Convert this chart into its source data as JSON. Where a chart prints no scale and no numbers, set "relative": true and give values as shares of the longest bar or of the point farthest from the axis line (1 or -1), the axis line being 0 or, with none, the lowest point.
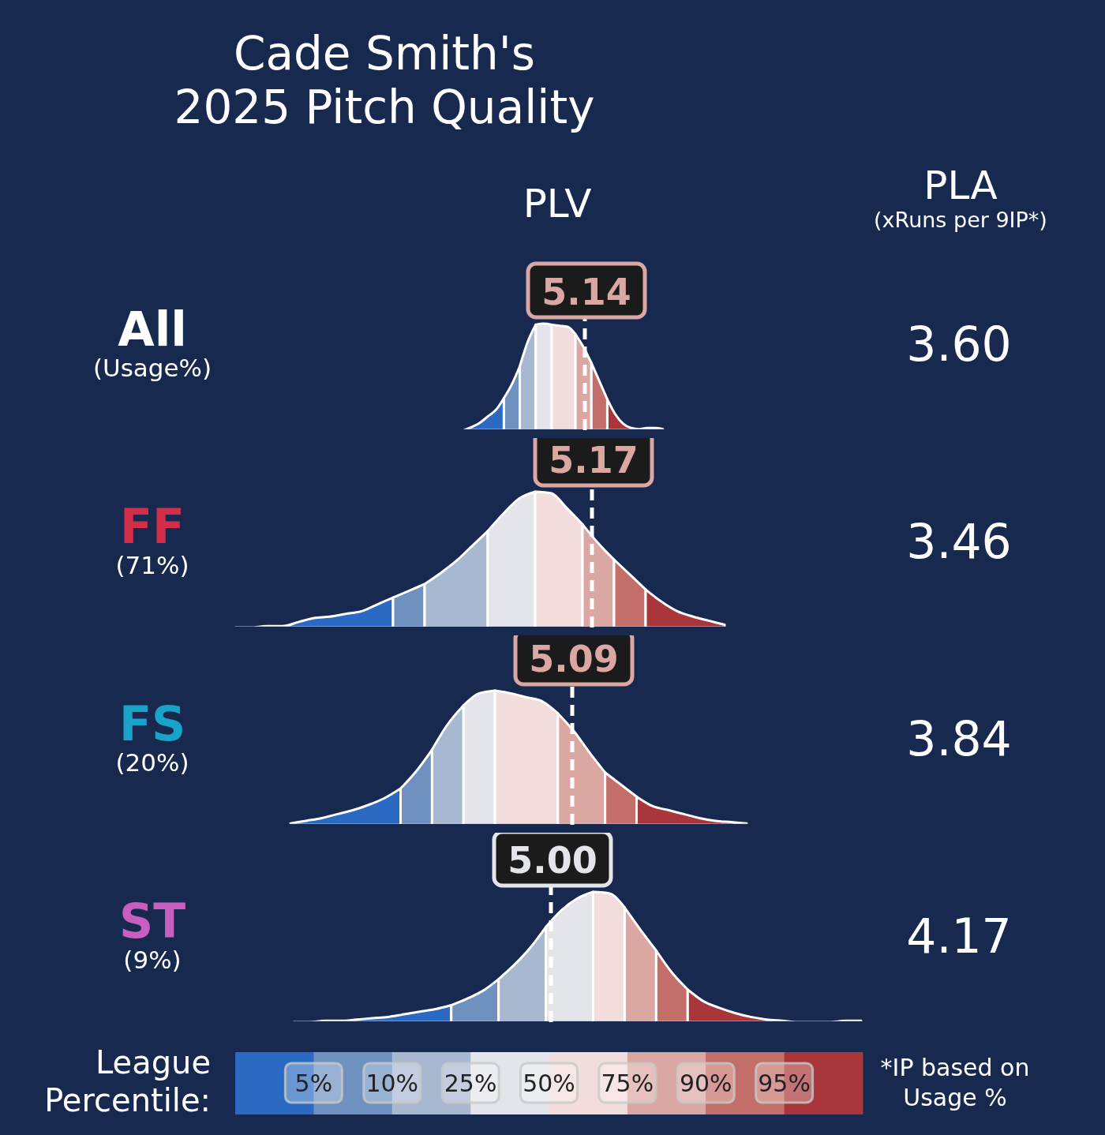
{
  "chart_data": [
    {
      "type": "other",
      "title": "Cade Smith's\n2025 Pitch Quality",
      "annotations": [
        "PLV",
        "PLA",
        "(xRuns per 9IP*)",
        "(Usage%)"
      ]
    },
    {
      "type": "area",
      "title": "All",
      "relative": true,
      "categories": [
        null,
        null,
        null,
        null,
        null,
        null,
        null,
        null,
        null,
        null,
        null,
        null,
        null,
        null,
        null,
        null,
        null,
        null,
        null,
        null,
        null,
        null,
        null,
        null,
        null,
        null
      ],
      "series": [
        {
          "color": "#2a6ac2",
          "values": [
            0,
            0.03,
            0.07,
            0.13,
            0.19,
            0.3,
            null,
            null,
            null,
            null,
            null,
            null,
            null,
            null,
            null,
            null,
            null,
            null,
            null,
            null,
            null,
            null,
            null,
            null,
            null,
            null
          ]
        },
        {
          "color": "#6e91c0",
          "values": [
            null,
            null,
            null,
            null,
            null,
            0.3,
            0.43,
            0.6,
            null,
            null,
            null,
            null,
            null,
            null,
            null,
            null,
            null,
            null,
            null,
            null,
            null,
            null,
            null,
            null,
            null,
            null
          ]
        },
        {
          "color": "#a9b8d1",
          "values": [
            null,
            null,
            null,
            null,
            null,
            null,
            null,
            0.6,
            0.83,
            0.99,
            null,
            null,
            null,
            null,
            null,
            null,
            null,
            null,
            null,
            null,
            null,
            null,
            null,
            null,
            null,
            null
          ]
        },
        {
          "color": "#e4e5ea",
          "values": [
            null,
            null,
            null,
            null,
            null,
            null,
            null,
            null,
            null,
            0.99,
            1,
            0.99,
            null,
            null,
            null,
            null,
            null,
            null,
            null,
            null,
            null,
            null,
            null,
            null,
            null,
            null
          ]
        },
        {
          "color": "#f2dddc",
          "values": [
            null,
            null,
            null,
            null,
            null,
            null,
            null,
            null,
            null,
            null,
            null,
            0.99,
            0.98,
            0.97,
            0.9,
            null,
            null,
            null,
            null,
            null,
            null,
            null,
            null,
            null,
            null,
            null
          ]
        },
        {
          "color": "#dba7a3",
          "values": [
            null,
            null,
            null,
            null,
            null,
            null,
            null,
            null,
            null,
            null,
            null,
            null,
            null,
            null,
            0.9,
            0.78,
            0.63,
            null,
            null,
            null,
            null,
            null,
            null,
            null,
            null,
            null
          ]
        },
        {
          "color": "#c46e69",
          "values": [
            null,
            null,
            null,
            null,
            null,
            null,
            null,
            null,
            null,
            null,
            null,
            null,
            null,
            null,
            null,
            null,
            0.63,
            0.46,
            0.29,
            null,
            null,
            null,
            null,
            null,
            null,
            null
          ]
        },
        {
          "color": "#a9363a",
          "values": [
            null,
            null,
            null,
            null,
            null,
            null,
            null,
            null,
            null,
            null,
            null,
            null,
            null,
            null,
            null,
            null,
            null,
            null,
            0.29,
            0.15,
            0.06,
            0.02,
            0.01,
            0.02,
            0.02,
            0.01
          ]
        }
      ],
      "annotations": [
        "5.14",
        "3.60"
      ]
    },
    {
      "type": "area",
      "title": "FF",
      "subtitle": "(71%)",
      "relative": true,
      "categories": [
        null,
        null,
        null,
        null,
        null,
        null,
        null,
        null,
        null,
        null,
        null,
        null,
        null,
        null,
        null,
        null,
        null,
        null,
        null,
        null,
        null,
        null,
        null,
        null,
        null,
        null,
        null,
        null,
        null,
        null,
        null,
        null
      ],
      "series": [
        {
          "color": "#2a6ac2",
          "values": [
            0,
            0,
            0.01,
            0.01,
            0.04,
            0.07,
            0.08,
            0.1,
            0.12,
            0.17,
            0.22,
            null,
            null,
            null,
            null,
            null,
            null,
            null,
            null,
            null,
            null,
            null,
            null,
            null,
            null,
            null,
            null,
            null,
            null,
            null,
            null,
            null
          ]
        },
        {
          "color": "#6e91c0",
          "values": [
            null,
            null,
            null,
            null,
            null,
            null,
            null,
            null,
            null,
            null,
            0.22,
            0.27,
            0.32,
            null,
            null,
            null,
            null,
            null,
            null,
            null,
            null,
            null,
            null,
            null,
            null,
            null,
            null,
            null,
            null,
            null,
            null,
            null
          ]
        },
        {
          "color": "#a9b8d1",
          "values": [
            null,
            null,
            null,
            null,
            null,
            null,
            null,
            null,
            null,
            null,
            null,
            null,
            0.32,
            0.4,
            0.49,
            0.6,
            0.71,
            null,
            null,
            null,
            null,
            null,
            null,
            null,
            null,
            null,
            null,
            null,
            null,
            null,
            null,
            null
          ]
        },
        {
          "color": "#e4e5ea",
          "values": [
            null,
            null,
            null,
            null,
            null,
            null,
            null,
            null,
            null,
            null,
            null,
            null,
            null,
            null,
            null,
            null,
            0.71,
            0.84,
            0.95,
            1,
            null,
            null,
            null,
            null,
            null,
            null,
            null,
            null,
            null,
            null,
            null,
            null
          ]
        },
        {
          "color": "#f2dddc",
          "values": [
            null,
            null,
            null,
            null,
            null,
            null,
            null,
            null,
            null,
            null,
            null,
            null,
            null,
            null,
            null,
            null,
            null,
            null,
            null,
            1,
            0.99,
            0.88,
            0.76,
            null,
            null,
            null,
            null,
            null,
            null,
            null,
            null,
            null
          ]
        },
        {
          "color": "#dba7a3",
          "values": [
            null,
            null,
            null,
            null,
            null,
            null,
            null,
            null,
            null,
            null,
            null,
            null,
            null,
            null,
            null,
            null,
            null,
            null,
            null,
            null,
            null,
            null,
            0.76,
            0.62,
            0.5,
            null,
            null,
            null,
            null,
            null,
            null,
            null
          ]
        },
        {
          "color": "#c46e69",
          "values": [
            null,
            null,
            null,
            null,
            null,
            null,
            null,
            null,
            null,
            null,
            null,
            null,
            null,
            null,
            null,
            null,
            null,
            null,
            null,
            null,
            null,
            null,
            null,
            null,
            0.5,
            0.39,
            0.28,
            null,
            null,
            null,
            null,
            null
          ]
        },
        {
          "color": "#a9363a",
          "values": [
            null,
            null,
            null,
            null,
            null,
            null,
            null,
            null,
            null,
            null,
            null,
            null,
            null,
            null,
            null,
            null,
            null,
            null,
            null,
            null,
            null,
            null,
            null,
            null,
            null,
            null,
            0.28,
            0.19,
            0.12,
            0.08,
            0.05,
            0.02
          ]
        }
      ],
      "annotations": [
        "5.17",
        "3.46"
      ]
    },
    {
      "type": "area",
      "title": "FS",
      "subtitle": "(20%)",
      "relative": true,
      "categories": [
        null,
        null,
        null,
        null,
        null,
        null,
        null,
        null,
        null,
        null,
        null,
        null,
        null,
        null,
        null,
        null,
        null,
        null,
        null,
        null,
        null,
        null,
        null,
        null,
        null,
        null,
        null,
        null,
        null,
        null
      ],
      "series": [
        {
          "color": "#2a6ac2",
          "values": [
            0.01,
            0.03,
            0.05,
            0.08,
            0.11,
            0.15,
            0.2,
            0.27,
            null,
            null,
            null,
            null,
            null,
            null,
            null,
            null,
            null,
            null,
            null,
            null,
            null,
            null,
            null,
            null,
            null,
            null,
            null,
            null,
            null,
            null
          ]
        },
        {
          "color": "#6e91c0",
          "values": [
            null,
            null,
            null,
            null,
            null,
            null,
            null,
            0.27,
            0.4,
            0.56,
            null,
            null,
            null,
            null,
            null,
            null,
            null,
            null,
            null,
            null,
            null,
            null,
            null,
            null,
            null,
            null,
            null,
            null,
            null,
            null
          ]
        },
        {
          "color": "#a9b8d1",
          "values": [
            null,
            null,
            null,
            null,
            null,
            null,
            null,
            null,
            null,
            0.56,
            0.75,
            0.89,
            null,
            null,
            null,
            null,
            null,
            null,
            null,
            null,
            null,
            null,
            null,
            null,
            null,
            null,
            null,
            null,
            null,
            null
          ]
        },
        {
          "color": "#e4e5ea",
          "values": [
            null,
            null,
            null,
            null,
            null,
            null,
            null,
            null,
            null,
            null,
            null,
            0.89,
            0.98,
            1,
            null,
            null,
            null,
            null,
            null,
            null,
            null,
            null,
            null,
            null,
            null,
            null,
            null,
            null,
            null,
            null
          ]
        },
        {
          "color": "#f2dddc",
          "values": [
            null,
            null,
            null,
            null,
            null,
            null,
            null,
            null,
            null,
            null,
            null,
            null,
            null,
            1,
            0.98,
            0.95,
            0.92,
            0.83,
            null,
            null,
            null,
            null,
            null,
            null,
            null,
            null,
            null,
            null,
            null,
            null
          ]
        },
        {
          "color": "#dba7a3",
          "values": [
            null,
            null,
            null,
            null,
            null,
            null,
            null,
            null,
            null,
            null,
            null,
            null,
            null,
            null,
            null,
            null,
            null,
            0.83,
            0.7,
            0.54,
            0.39,
            null,
            null,
            null,
            null,
            null,
            null,
            null,
            null,
            null
          ]
        },
        {
          "color": "#c46e69",
          "values": [
            null,
            null,
            null,
            null,
            null,
            null,
            null,
            null,
            null,
            null,
            null,
            null,
            null,
            null,
            null,
            null,
            null,
            null,
            null,
            null,
            0.39,
            0.3,
            0.21,
            null,
            null,
            null,
            null,
            null,
            null,
            null
          ]
        },
        {
          "color": "#a9363a",
          "values": [
            null,
            null,
            null,
            null,
            null,
            null,
            null,
            null,
            null,
            null,
            null,
            null,
            null,
            null,
            null,
            null,
            null,
            null,
            null,
            null,
            null,
            null,
            0.21,
            0.14,
            0.11,
            0.08,
            0.05,
            0.03,
            0.02,
            0.01
          ]
        }
      ],
      "annotations": [
        "5.09",
        "3.84"
      ]
    },
    {
      "type": "area",
      "title": "ST",
      "subtitle": "(9%)",
      "relative": true,
      "categories": [
        null,
        null,
        null,
        null,
        null,
        null,
        null,
        null,
        null,
        null,
        null,
        null,
        null,
        null,
        null,
        null,
        null,
        null,
        null,
        null,
        null,
        null,
        null,
        null,
        null,
        null,
        null,
        null,
        null,
        null,
        null,
        null,
        null,
        null,
        null,
        null,
        null
      ],
      "series": [
        {
          "color": "#2a6ac2",
          "values": [
            0,
            0,
            0.01,
            0.01,
            0.02,
            0.03,
            0.04,
            0.06,
            0.08,
            0.1,
            0.13,
            null,
            null,
            null,
            null,
            null,
            null,
            null,
            null,
            null,
            null,
            null,
            null,
            null,
            null,
            null,
            null,
            null,
            null,
            null,
            null,
            null,
            null,
            null,
            null,
            null,
            null
          ]
        },
        {
          "color": "#6e91c0",
          "values": [
            null,
            null,
            null,
            null,
            null,
            null,
            null,
            null,
            null,
            null,
            0.13,
            0.18,
            0.24,
            0.33,
            null,
            null,
            null,
            null,
            null,
            null,
            null,
            null,
            null,
            null,
            null,
            null,
            null,
            null,
            null,
            null,
            null,
            null,
            null,
            null,
            null,
            null,
            null
          ]
        },
        {
          "color": "#a9b8d1",
          "values": [
            null,
            null,
            null,
            null,
            null,
            null,
            null,
            null,
            null,
            null,
            null,
            null,
            null,
            0.33,
            0.44,
            0.57,
            0.73,
            null,
            null,
            null,
            null,
            null,
            null,
            null,
            null,
            null,
            null,
            null,
            null,
            null,
            null,
            null,
            null,
            null,
            null,
            null,
            null
          ]
        },
        {
          "color": "#e4e5ea",
          "values": [
            null,
            null,
            null,
            null,
            null,
            null,
            null,
            null,
            null,
            null,
            null,
            null,
            null,
            null,
            null,
            null,
            0.73,
            0.86,
            0.95,
            1,
            null,
            null,
            null,
            null,
            null,
            null,
            null,
            null,
            null,
            null,
            null,
            null,
            null,
            null,
            null,
            null,
            null
          ]
        },
        {
          "color": "#f2dddc",
          "values": [
            null,
            null,
            null,
            null,
            null,
            null,
            null,
            null,
            null,
            null,
            null,
            null,
            null,
            null,
            null,
            null,
            null,
            null,
            null,
            1,
            0.99,
            0.88,
            null,
            null,
            null,
            null,
            null,
            null,
            null,
            null,
            null,
            null,
            null,
            null,
            null,
            null,
            null
          ]
        },
        {
          "color": "#dba7a3",
          "values": [
            null,
            null,
            null,
            null,
            null,
            null,
            null,
            null,
            null,
            null,
            null,
            null,
            null,
            null,
            null,
            null,
            null,
            null,
            null,
            null,
            null,
            0.88,
            0.71,
            0.55,
            null,
            null,
            null,
            null,
            null,
            null,
            null,
            null,
            null,
            null,
            null,
            null,
            null
          ]
        },
        {
          "color": "#c46e69",
          "values": [
            null,
            null,
            null,
            null,
            null,
            null,
            null,
            null,
            null,
            null,
            null,
            null,
            null,
            null,
            null,
            null,
            null,
            null,
            null,
            null,
            null,
            null,
            null,
            0.55,
            0.38,
            0.25,
            null,
            null,
            null,
            null,
            null,
            null,
            null,
            null,
            null,
            null,
            null
          ]
        },
        {
          "color": "#a9363a",
          "values": [
            null,
            null,
            null,
            null,
            null,
            null,
            null,
            null,
            null,
            null,
            null,
            null,
            null,
            null,
            null,
            null,
            null,
            null,
            null,
            null,
            null,
            null,
            null,
            null,
            null,
            0.25,
            0.16,
            0.11,
            0.07,
            0.04,
            0.02,
            0.01,
            0,
            0,
            0,
            0.01,
            0.01
          ]
        }
      ],
      "annotations": [
        "5.00",
        "4.17"
      ]
    },
    {
      "type": "other",
      "colors": [
        "#2a6ac2",
        "#6e91c0",
        "#a9b8d1",
        "#e4e5ea",
        "#f2dddc",
        "#dba7a3",
        "#c46e69",
        "#a9363a"
      ],
      "annotations": [
        "League\nPercentile:",
        "5%",
        "10%",
        "25%",
        "50%",
        "75%",
        "90%",
        "95%",
        "*IP based on\nUsage %"
      ]
    }
  ]
}
